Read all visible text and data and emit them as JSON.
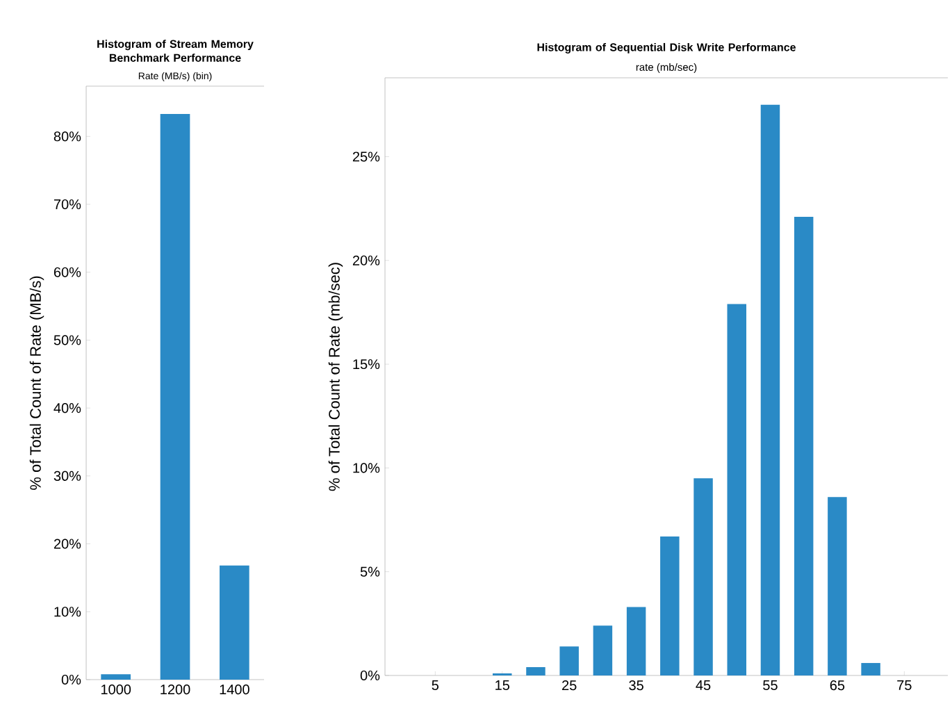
{
  "chart_data": [
    {
      "type": "bar",
      "title": "Histogram of Stream Memory Benchmark Performance",
      "xlabel": "Rate (MB/s) (bin)",
      "ylabel": "% of Total Count of Rate (MB/s)",
      "categories": [
        "1000",
        "1200",
        "1400"
      ],
      "values": [
        0.8,
        83.3,
        16.8
      ],
      "color": "#2a8ac6",
      "ylim": [
        0,
        87.4
      ],
      "yticks": [
        {
          "value": 0,
          "label": "0%"
        },
        {
          "value": 10,
          "label": "10%"
        },
        {
          "value": 20,
          "label": "20%"
        },
        {
          "value": 30,
          "label": "30%"
        },
        {
          "value": 40,
          "label": "40%"
        },
        {
          "value": 50,
          "label": "50%"
        },
        {
          "value": 60,
          "label": "60%"
        },
        {
          "value": 70,
          "label": "70%"
        },
        {
          "value": 80,
          "label": "80%"
        }
      ]
    },
    {
      "type": "bar",
      "title": "Histogram of Sequential Disk Write Performance",
      "xlabel": "rate (mb/sec)",
      "ylabel": "% of Total Count of Rate (mb/sec)",
      "categories": [
        "5",
        null,
        "15",
        null,
        "25",
        null,
        "35",
        null,
        "45",
        null,
        "55",
        null,
        "65",
        null,
        "75"
      ],
      "values": [
        null,
        null,
        0.1,
        0.4,
        1.4,
        2.4,
        3.3,
        6.7,
        9.5,
        17.9,
        27.5,
        22.1,
        8.6,
        0.6,
        null
      ],
      "color": "#2a8ac6",
      "ylim": [
        0,
        28.8
      ],
      "yticks": [
        {
          "value": 0,
          "label": "0%"
        },
        {
          "value": 5,
          "label": "5%"
        },
        {
          "value": 10,
          "label": "10%"
        },
        {
          "value": 15,
          "label": "15%"
        },
        {
          "value": 20,
          "label": "20%"
        },
        {
          "value": 25,
          "label": "25%"
        }
      ]
    }
  ]
}
